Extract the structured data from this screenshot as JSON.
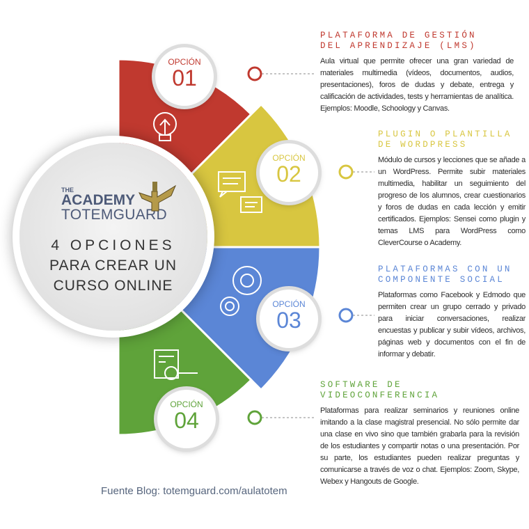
{
  "center": {
    "logo": {
      "the": "THE",
      "academy": "ACADEMY",
      "totemguard": "TOTEMGUARD"
    },
    "headline": [
      "4 OPCIONES",
      "PARA CREAR UN",
      "CURSO ONLINE"
    ]
  },
  "options": [
    {
      "label": "OPCIÓN",
      "number": "01",
      "color": "#c0392f",
      "icon": "lightbulb-icon",
      "title": "PLATAFORMA DE GESTIÓN\nDEL APRENDIZAJE (LMS)",
      "body": "Aula virtual que permite ofrecer una gran variedad de materiales multimedia (vídeos, documentos, audios, presentaciones), foros de dudas y debate, entrega y calificación de actividades, tests y herramientas de analítica. Ejemplos: Moodle, Schoology y Canvas."
    },
    {
      "label": "OPCIÓN",
      "number": "02",
      "color": "#d8c640",
      "icon": "chat-bubbles-icon",
      "title": "PLUGIN O PLANTILLA\nDE WORDPRESS",
      "body": "Módulo de cursos y lecciones que se añade a un WordPress. Permite subir materiales multimedia, habilitar un seguimiento del progreso de los alumnos, crear cuestionarios y foros de dudas en cada lección y emitir certificados. Ejemplos: Sensei como plugin y temas LMS para WordPress como CleverCourse o Academy."
    },
    {
      "label": "OPCIÓN",
      "number": "03",
      "color": "#5b86d6",
      "icon": "gears-icon",
      "title": "PLATAFORMAS CON UN\nCOMPONENTE SOCIAL",
      "body": "Plataformas como Facebook y Edmodo que permiten crear un grupo cerrado y privado para iniciar conversaciones, realizar encuestas y publicar y subir vídeos, archivos, páginas web y documentos con el fin de informar y debatir."
    },
    {
      "label": "OPCIÓN",
      "number": "04",
      "color": "#5fa33a",
      "icon": "document-search-icon",
      "title": "SOFTWARE DE\nVIDEOCONFERENCIA",
      "body": "Plataformas para realizar seminarios y reuniones online imitando a la clase magistral presencial. No sólo permite dar una clase en vivo sino que también grabarla para la revisión de los estudiantes y compartir notas o una presentación. Por su parte, los estudiantes pueden realizar preguntas y comunicarse a través de voz o chat. Ejemplos: Zoom, Skype, Webex y Hangouts de Google."
    }
  ],
  "source": "Fuente Blog: totemguard.com/aulatotem"
}
